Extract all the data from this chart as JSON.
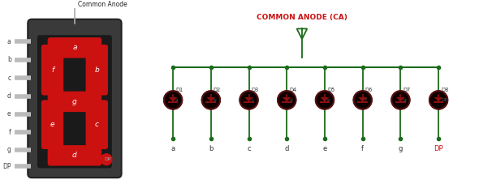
{
  "bg_color": "#ffffff",
  "display_bg": "#3a3a3a",
  "display_inner_bg": "#1a1a1a",
  "segment_color": "#cc1111",
  "segment_off": "#2a0808",
  "pin_label_color": "#444444",
  "title_color": "#cc1111",
  "wire_color": "#1a6b1a",
  "led_body_color": "#0d0000",
  "led_border_color": "#5a1010",
  "led_arrow_color": "#8b1010",
  "common_anode_label": "COMMON ANODE (CA)",
  "common_anode_pin_label": "Common Anode",
  "diode_labels": [
    "D1",
    "D2",
    "D3",
    "D4",
    "D5",
    "D6",
    "D7",
    "D8"
  ],
  "diode_sublabels": [
    "a",
    "b",
    "c",
    "d",
    "e",
    "f",
    "g",
    "DP"
  ],
  "pin_labels": [
    "a",
    "b",
    "c",
    "d",
    "e",
    "f",
    "g",
    "DP"
  ],
  "bottom_label_colors": [
    "#333333",
    "#333333",
    "#333333",
    "#333333",
    "#333333",
    "#333333",
    "#333333",
    "#cc1111"
  ]
}
